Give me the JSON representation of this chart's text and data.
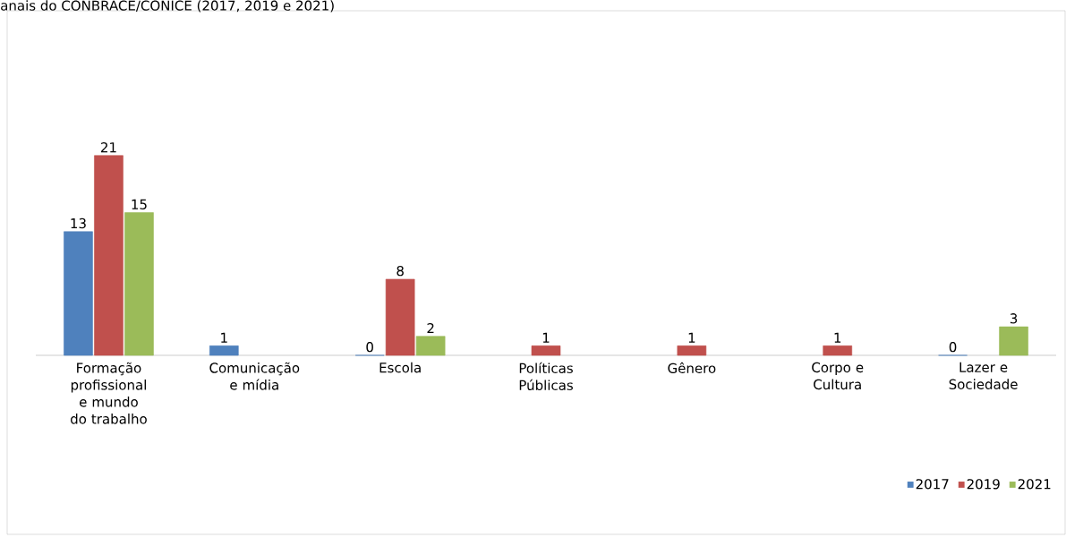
{
  "chart_data": {
    "type": "bar",
    "title": "anais do CONBRACE/CONICE (2017, 2019 e 2021)",
    "categories": [
      "Formação profissional e mundo do trabalho",
      "Comunicação e mídia",
      "Escola",
      "Políticas Públicas",
      "Gênero",
      "Corpo e Cultura",
      "Lazer e Sociedade"
    ],
    "series": [
      {
        "name": "2017",
        "color": "#4f81bd",
        "values": [
          13,
          1,
          0,
          null,
          null,
          null,
          0
        ]
      },
      {
        "name": "2019",
        "color": "#c0504d",
        "values": [
          21,
          null,
          8,
          1,
          1,
          1,
          null
        ]
      },
      {
        "name": "2021",
        "color": "#9bbb59",
        "values": [
          15,
          null,
          2,
          null,
          null,
          null,
          3
        ]
      }
    ],
    "data_labels": true,
    "legend": "bottom right"
  }
}
